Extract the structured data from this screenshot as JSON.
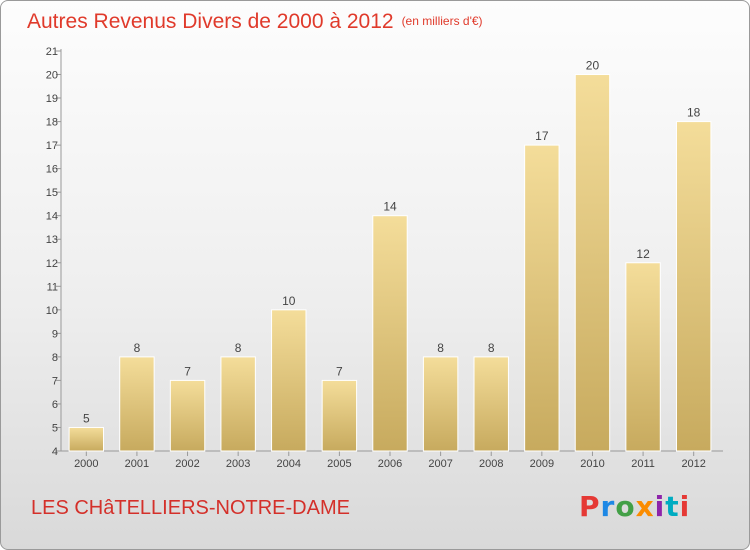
{
  "header": {
    "title": "Autres Revenus Divers de 2000 à 2012",
    "unit": "(en milliers d'€)"
  },
  "footer": {
    "commune": "LES CHâTELLIERS-NOTRE-DAME",
    "logo_letters": [
      "P",
      "r",
      "o",
      "x",
      "i",
      "t",
      "i"
    ]
  },
  "colors": {
    "title": "#e03a2b",
    "bar_light": "#f4dd9a",
    "bar_dark": "#c7aa5e"
  },
  "chart_data": {
    "type": "bar",
    "categories": [
      "2000",
      "2001",
      "2002",
      "2003",
      "2004",
      "2005",
      "2006",
      "2007",
      "2008",
      "2009",
      "2010",
      "2011",
      "2012"
    ],
    "values": [
      5,
      8,
      7,
      8,
      10,
      7,
      14,
      8,
      8,
      17,
      20,
      12,
      18
    ],
    "data_labels": [
      "5",
      "8",
      "7",
      "8",
      "10",
      "7",
      "14",
      "8",
      "8",
      "17",
      "20",
      "12",
      "18"
    ],
    "y_ticks": [
      4,
      5,
      6,
      7,
      8,
      9,
      10,
      11,
      12,
      13,
      14,
      15,
      16,
      17,
      18,
      19,
      20,
      21
    ],
    "ylim": [
      4,
      21
    ],
    "grid": false,
    "legend": "none"
  }
}
